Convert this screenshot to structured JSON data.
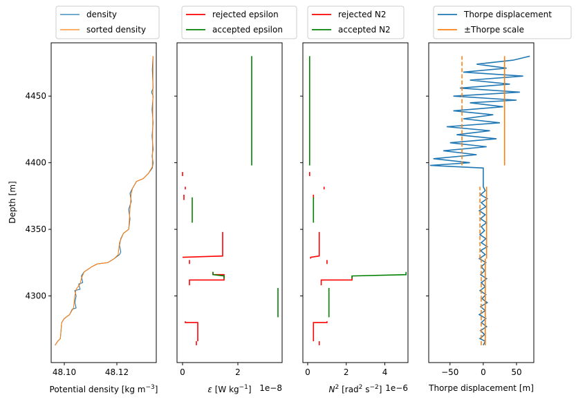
{
  "chart_data": [
    {
      "type": "line",
      "ylabel": "Depth [m]",
      "xlabel": "Potential density [kg m⁻³]",
      "xlim": [
        48.095,
        48.135
      ],
      "ylim": [
        4490,
        4250
      ],
      "xticks": [
        48.1,
        48.12
      ],
      "xtick_labels": [
        "48.10",
        "48.12"
      ],
      "yticks": [
        4300,
        4350,
        4400,
        4450
      ],
      "ytick_labels": [
        "4300",
        "4350",
        "4400",
        "4450"
      ],
      "legend_position": "top",
      "series": [
        {
          "name": "density",
          "color": "#1f77b4",
          "points": [
            [
              48.0965,
              4263
            ],
            [
              48.0975,
              4266
            ],
            [
              48.0985,
              4268
            ],
            [
              48.099,
              4280
            ],
            [
              48.1,
              4283
            ],
            [
              48.102,
              4286
            ],
            [
              48.103,
              4290
            ],
            [
              48.1045,
              4291
            ],
            [
              48.104,
              4295
            ],
            [
              48.1045,
              4300
            ],
            [
              48.104,
              4304
            ],
            [
              48.106,
              4305
            ],
            [
              48.1055,
              4309
            ],
            [
              48.107,
              4310
            ],
            [
              48.1065,
              4315
            ],
            [
              48.1075,
              4318
            ],
            [
              48.109,
              4320
            ],
            [
              48.1105,
              4322
            ],
            [
              48.1125,
              4324
            ],
            [
              48.1165,
              4325
            ],
            [
              48.119,
              4328
            ],
            [
              48.121,
              4331
            ],
            [
              48.1215,
              4333
            ],
            [
              48.121,
              4338
            ],
            [
              48.1215,
              4343
            ],
            [
              48.1225,
              4347
            ],
            [
              48.1245,
              4350
            ],
            [
              48.125,
              4358
            ],
            [
              48.1245,
              4365
            ],
            [
              48.1255,
              4371
            ],
            [
              48.125,
              4377
            ],
            [
              48.126,
              4381
            ],
            [
              48.1275,
              4386
            ],
            [
              48.13,
              4388
            ],
            [
              48.132,
              4392
            ],
            [
              48.1335,
              4396
            ],
            [
              48.1338,
              4400
            ],
            [
              48.1334,
              4405
            ],
            [
              48.1338,
              4410
            ],
            [
              48.1334,
              4420
            ],
            [
              48.1338,
              4430
            ],
            [
              48.1334,
              4440
            ],
            [
              48.1338,
              4450
            ],
            [
              48.1332,
              4453
            ],
            [
              48.1338,
              4456
            ],
            [
              48.1335,
              4470
            ],
            [
              48.1338,
              4480
            ]
          ]
        },
        {
          "name": "sorted density",
          "color": "#ff7f0e",
          "points": [
            [
              48.0965,
              4263
            ],
            [
              48.0975,
              4266
            ],
            [
              48.0985,
              4268
            ],
            [
              48.099,
              4280
            ],
            [
              48.1,
              4283
            ],
            [
              48.102,
              4286
            ],
            [
              48.1035,
              4291
            ],
            [
              48.104,
              4300
            ],
            [
              48.1045,
              4305
            ],
            [
              48.106,
              4309
            ],
            [
              48.1065,
              4313
            ],
            [
              48.1075,
              4318
            ],
            [
              48.109,
              4320
            ],
            [
              48.1105,
              4322
            ],
            [
              48.1125,
              4324
            ],
            [
              48.1165,
              4325
            ],
            [
              48.119,
              4328
            ],
            [
              48.1205,
              4331
            ],
            [
              48.121,
              4340
            ],
            [
              48.1225,
              4347
            ],
            [
              48.1245,
              4350
            ],
            [
              48.125,
              4365
            ],
            [
              48.1255,
              4377
            ],
            [
              48.126,
              4381
            ],
            [
              48.1275,
              4386
            ],
            [
              48.13,
              4388
            ],
            [
              48.132,
              4392
            ],
            [
              48.1335,
              4397
            ],
            [
              48.1336,
              4420
            ],
            [
              48.1337,
              4450
            ],
            [
              48.1338,
              4480
            ]
          ]
        }
      ]
    },
    {
      "type": "line",
      "xlabel": "ε [W kg⁻¹]",
      "x_offset_text": "1e−8",
      "xlim": [
        -0.2,
        3.6
      ],
      "x_scale": "1e-8",
      "ylim": [
        4490,
        4250
      ],
      "xticks": [
        0,
        2
      ],
      "xtick_labels": [
        "0",
        "2"
      ],
      "legend_position": "top",
      "series": [
        {
          "name": "rejected epsilon",
          "color": "#ff0000",
          "segments": [
            [
              [
                0.5,
                4263
              ],
              [
                0.5,
                4266
              ]
            ],
            [
              [
                0.55,
                4266
              ],
              [
                0.55,
                4280
              ],
              [
                0.1,
                4280
              ],
              [
                0.1,
                4281
              ]
            ],
            [
              [
                0.25,
                4308
              ],
              [
                0.25,
                4312
              ],
              [
                1.5,
                4312
              ],
              [
                1.5,
                4316
              ],
              [
                1.1,
                4316
              ],
              [
                1.1,
                4318
              ]
            ],
            [
              [
                0.25,
                4324
              ],
              [
                0.25,
                4327
              ]
            ],
            [
              [
                0.0,
                4329
              ],
              [
                1.45,
                4330
              ],
              [
                1.45,
                4348
              ]
            ],
            [
              [
                0.05,
                4372
              ],
              [
                0.05,
                4376
              ]
            ],
            [
              [
                0.1,
                4380
              ],
              [
                0.1,
                4382
              ]
            ],
            [
              [
                0.0,
                4390
              ],
              [
                0.0,
                4393
              ]
            ]
          ]
        },
        {
          "name": "accepted epsilon",
          "color": "#008000",
          "segments": [
            [
              [
                3.45,
                4284
              ],
              [
                3.45,
                4306
              ]
            ],
            [
              [
                1.5,
                4313
              ],
              [
                1.5,
                4315
              ],
              [
                1.1,
                4316
              ],
              [
                1.1,
                4318
              ]
            ],
            [
              [
                0.35,
                4355
              ],
              [
                0.35,
                4374
              ]
            ],
            [
              [
                2.5,
                4398
              ],
              [
                2.5,
                4480
              ]
            ]
          ]
        }
      ]
    },
    {
      "type": "line",
      "xlabel": "N² [rad² s⁻²]",
      "x_offset_text": "1e−6",
      "xlim": [
        -0.25,
        5.2
      ],
      "x_scale": "1e-6",
      "ylim": [
        4490,
        4250
      ],
      "xticks": [
        0,
        2,
        4
      ],
      "xtick_labels": [
        "0",
        "2",
        "4"
      ],
      "legend_position": "top",
      "series": [
        {
          "name": "rejected N2",
          "color": "#ff0000",
          "segments": [
            [
              [
                0.6,
                4263
              ],
              [
                0.6,
                4266
              ]
            ],
            [
              [
                0.3,
                4266
              ],
              [
                0.3,
                4280
              ],
              [
                1.0,
                4280
              ],
              [
                1.0,
                4281
              ]
            ],
            [
              [
                0.7,
                4308
              ],
              [
                0.7,
                4312
              ],
              [
                2.3,
                4312
              ],
              [
                2.3,
                4315
              ]
            ],
            [
              [
                1.0,
                4324
              ],
              [
                1.0,
                4327
              ]
            ],
            [
              [
                0.15,
                4328
              ],
              [
                0.15,
                4329
              ],
              [
                0.6,
                4330
              ],
              [
                0.6,
                4348
              ]
            ],
            [
              [
                0.3,
                4373
              ],
              [
                0.3,
                4376
              ]
            ],
            [
              [
                0.85,
                4380
              ],
              [
                0.85,
                4382
              ]
            ],
            [
              [
                0.1,
                4390
              ],
              [
                0.1,
                4393
              ]
            ]
          ]
        },
        {
          "name": "accepted N2",
          "color": "#008000",
          "segments": [
            [
              [
                1.1,
                4284
              ],
              [
                1.1,
                4306
              ]
            ],
            [
              [
                2.3,
                4313
              ],
              [
                2.3,
                4315
              ],
              [
                5.1,
                4316
              ],
              [
                5.1,
                4318
              ]
            ],
            [
              [
                0.3,
                4355
              ],
              [
                0.3,
                4374
              ]
            ],
            [
              [
                0.1,
                4398
              ],
              [
                0.1,
                4480
              ]
            ]
          ]
        }
      ]
    },
    {
      "type": "line",
      "xlabel": "Thorpe displacement [m]",
      "xlim": [
        -82,
        76
      ],
      "ylim": [
        4490,
        4250
      ],
      "xticks": [
        -50,
        0,
        50
      ],
      "xtick_labels": [
        "−50",
        "0",
        "50"
      ],
      "legend_position": "top",
      "series": [
        {
          "name": "Thorpe displacement",
          "color": "#1f77b4",
          "points": [
            [
              0,
              4263
            ],
            [
              3,
              4266
            ],
            [
              -5,
              4268
            ],
            [
              2,
              4271
            ],
            [
              -4,
              4274
            ],
            [
              5,
              4277
            ],
            [
              -3,
              4280
            ],
            [
              4,
              4283
            ],
            [
              -6,
              4286
            ],
            [
              3,
              4289
            ],
            [
              -4,
              4292
            ],
            [
              6,
              4295
            ],
            [
              -2,
              4298
            ],
            [
              4,
              4301
            ],
            [
              -5,
              4304
            ],
            [
              3,
              4307
            ],
            [
              -3,
              4310
            ],
            [
              5,
              4313
            ],
            [
              -4,
              4316
            ],
            [
              2,
              4319
            ],
            [
              -3,
              4322
            ],
            [
              4,
              4325
            ],
            [
              -6,
              4328
            ],
            [
              3,
              4331
            ],
            [
              -4,
              4334
            ],
            [
              6,
              4337
            ],
            [
              -3,
              4340
            ],
            [
              4,
              4343
            ],
            [
              -5,
              4346
            ],
            [
              2,
              4349
            ],
            [
              -3,
              4352
            ],
            [
              5,
              4355
            ],
            [
              -4,
              4358
            ],
            [
              3,
              4361
            ],
            [
              -6,
              4364
            ],
            [
              4,
              4367
            ],
            [
              -3,
              4370
            ],
            [
              6,
              4373
            ],
            [
              -4,
              4376
            ],
            [
              3,
              4379
            ],
            [
              0,
              4382
            ],
            [
              0,
              4396
            ],
            [
              -80,
              4398
            ],
            [
              -20,
              4400
            ],
            [
              -75,
              4403
            ],
            [
              -10,
              4406
            ],
            [
              -60,
              4409
            ],
            [
              5,
              4412
            ],
            [
              -50,
              4415
            ],
            [
              20,
              4418
            ],
            [
              -40,
              4421
            ],
            [
              10,
              4424
            ],
            [
              -55,
              4427
            ],
            [
              25,
              4430
            ],
            [
              -30,
              4433
            ],
            [
              15,
              4436
            ],
            [
              -45,
              4439
            ],
            [
              30,
              4442
            ],
            [
              -20,
              4445
            ],
            [
              50,
              4447
            ],
            [
              -45,
              4450
            ],
            [
              55,
              4453
            ],
            [
              -35,
              4456
            ],
            [
              40,
              4459
            ],
            [
              -20,
              4462
            ],
            [
              60,
              4465
            ],
            [
              -30,
              4468
            ],
            [
              35,
              4471
            ],
            [
              -10,
              4474
            ],
            [
              45,
              4477
            ],
            [
              70,
              4480
            ]
          ]
        },
        {
          "name": "±Thorpe scale",
          "color": "#ff7f0e",
          "segments": [
            [
              [
                3,
                4263
              ],
              [
                3,
                4297
              ]
            ],
            [
              [
                3,
                4297
              ],
              [
                3,
                4328
              ]
            ],
            [
              [
                5,
                4328
              ],
              [
                5,
                4382
              ]
            ],
            [
              [
                32,
                4398
              ],
              [
                32,
                4480
              ]
            ]
          ],
          "dashed_segments": [
            [
              [
                -3,
                4263
              ],
              [
                -3,
                4297
              ]
            ],
            [
              [
                -3,
                4297
              ],
              [
                -3,
                4328
              ]
            ],
            [
              [
                -5,
                4328
              ],
              [
                -5,
                4382
              ]
            ],
            [
              [
                -32,
                4398
              ],
              [
                -32,
                4480
              ]
            ]
          ]
        }
      ]
    }
  ]
}
